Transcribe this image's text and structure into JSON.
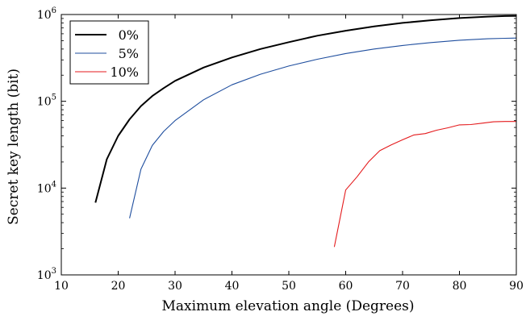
{
  "chart_data": {
    "type": "line",
    "title": "",
    "xlabel": "Maximum elevation angle (Degrees)",
    "ylabel": "Secret key length (bit)",
    "xlim": [
      10,
      90
    ],
    "ylim": [
      1000,
      1000000
    ],
    "yscale": "log",
    "grid": false,
    "legend_position": "top-left",
    "x_ticks": [
      10,
      20,
      30,
      40,
      50,
      60,
      70,
      80,
      90
    ],
    "y_ticks": [
      {
        "value": 1000,
        "base": "10",
        "exp": "3"
      },
      {
        "value": 10000,
        "base": "10",
        "exp": "4"
      },
      {
        "value": 100000,
        "base": "10",
        "exp": "5"
      },
      {
        "value": 1000000,
        "base": "10",
        "exp": "6"
      }
    ],
    "series": [
      {
        "name": "0%",
        "color": "#000000",
        "x": [
          16,
          18,
          20,
          22,
          24,
          26,
          28,
          30,
          35,
          40,
          45,
          50,
          55,
          60,
          65,
          70,
          75,
          80,
          85,
          88,
          90
        ],
        "y": [
          6800,
          21500,
          40000,
          62000,
          88000,
          115000,
          142000,
          172000,
          245000,
          320000,
          400000,
          480000,
          570000,
          650000,
          730000,
          800000,
          860000,
          910000,
          945000,
          960000,
          965000
        ]
      },
      {
        "name": "5%",
        "color": "#1f4e9e",
        "x": [
          22,
          24,
          26,
          28,
          30,
          35,
          40,
          45,
          50,
          55,
          60,
          65,
          70,
          75,
          80,
          85,
          88,
          90
        ],
        "y": [
          4500,
          16500,
          31000,
          45000,
          60000,
          104000,
          155000,
          205000,
          255000,
          305000,
          355000,
          400000,
          440000,
          475000,
          505000,
          525000,
          532000,
          535000
        ]
      },
      {
        "name": "10%",
        "color": "#e41a1c",
        "x": [
          58,
          60,
          62,
          64,
          66,
          68,
          70,
          72,
          74,
          76,
          78,
          80,
          82,
          84,
          86,
          88,
          90
        ],
        "y": [
          2100,
          9500,
          13500,
          20000,
          27000,
          31500,
          36000,
          41000,
          42500,
          46500,
          49500,
          53500,
          54000,
          56000,
          58000,
          58500,
          58500
        ]
      }
    ]
  }
}
